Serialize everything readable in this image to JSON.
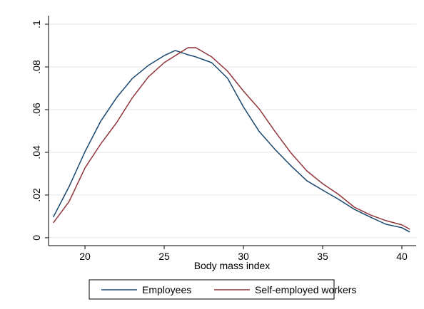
{
  "chart_data": {
    "type": "line",
    "x_label": "Body mass index",
    "x": [
      18,
      19,
      20,
      21,
      22,
      23,
      24,
      25,
      25.7,
      26.5,
      27,
      28,
      29,
      30,
      31,
      32,
      33,
      34,
      35,
      36,
      37,
      38,
      39,
      40,
      40.5
    ],
    "series": [
      {
        "name": "Employees",
        "color": "#1a476f",
        "values": [
          0.0097,
          0.024,
          0.0403,
          0.0547,
          0.0657,
          0.0747,
          0.0807,
          0.0853,
          0.0877,
          0.0857,
          0.0847,
          0.082,
          0.0747,
          0.0613,
          0.0497,
          0.0413,
          0.0337,
          0.0267,
          0.0223,
          0.018,
          0.0133,
          0.0097,
          0.0063,
          0.0047,
          0.0027
        ]
      },
      {
        "name": "Self-employed workers",
        "color": "#90353b",
        "values": [
          0.007,
          0.017,
          0.0327,
          0.044,
          0.054,
          0.0657,
          0.0753,
          0.082,
          0.0853,
          0.089,
          0.089,
          0.0847,
          0.078,
          0.0687,
          0.0603,
          0.0497,
          0.0397,
          0.0313,
          0.0253,
          0.0203,
          0.0143,
          0.0107,
          0.008,
          0.006,
          0.004
        ]
      }
    ],
    "xlim": [
      17.7,
      40.9
    ],
    "xticks": [
      20,
      25,
      30,
      35,
      40
    ],
    "ylim": [
      -0.0037,
      0.104
    ],
    "yticks": [
      0,
      {
        "value": 0.02,
        "label": ".02"
      },
      {
        "value": 0.04,
        "label": ".04"
      },
      {
        "value": 0.06,
        "label": ".06"
      },
      {
        "value": 0.08,
        "label": ".08"
      },
      {
        "value": 0.1,
        "label": ".1"
      }
    ],
    "grid": true
  }
}
